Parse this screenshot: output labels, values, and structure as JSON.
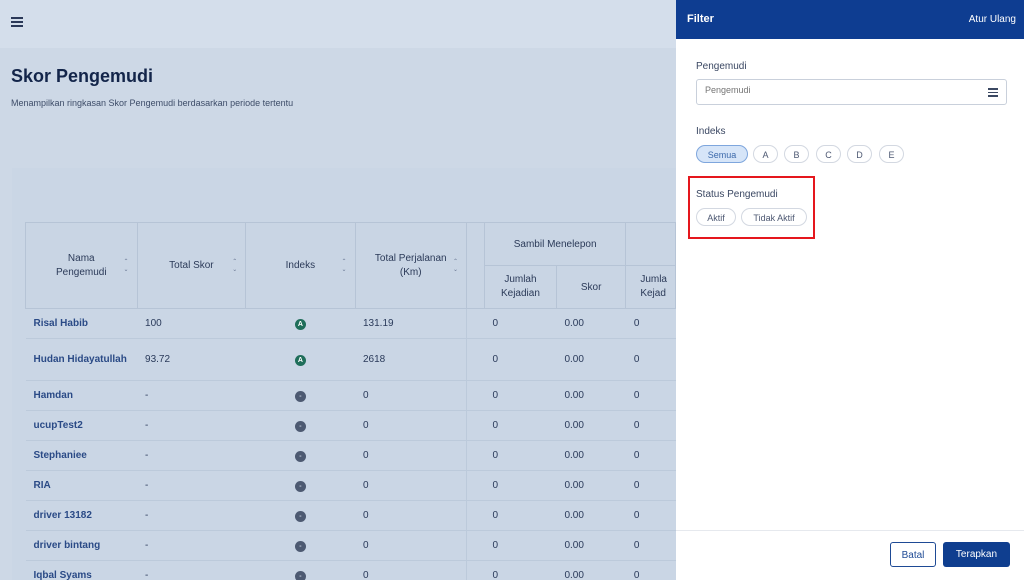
{
  "page": {
    "title": "Skor Pengemudi",
    "subtitle": "Menampilkan ringkasan Skor Pengemudi berdasarkan periode tertentu"
  },
  "table": {
    "headers": {
      "name": "Nama Pengemudi",
      "total_score": "Total Skor",
      "index": "Indeks",
      "total_trip": "Total Perjalanan (Km)",
      "group_phone": "Sambil Menelepon",
      "incidents": "Jumlah Kejadian",
      "score": "Skor",
      "incidents_partial": "Jumla Kejad"
    },
    "rows": [
      {
        "name": "Risal Habib",
        "total_score": "100",
        "index": "A",
        "trip": "131.19",
        "incidents": "0",
        "score": "0.00",
        "next": "0"
      },
      {
        "name": "Hudan Hidayatullah",
        "total_score": "93.72",
        "index": "A",
        "trip": "2618",
        "incidents": "0",
        "score": "0.00",
        "next": "0"
      },
      {
        "name": "Hamdan",
        "total_score": "-",
        "index": "-",
        "trip": "0",
        "incidents": "0",
        "score": "0.00",
        "next": "0"
      },
      {
        "name": "ucupTest2",
        "total_score": "-",
        "index": "-",
        "trip": "0",
        "incidents": "0",
        "score": "0.00",
        "next": "0"
      },
      {
        "name": "Stephaniee",
        "total_score": "-",
        "index": "-",
        "trip": "0",
        "incidents": "0",
        "score": "0.00",
        "next": "0"
      },
      {
        "name": "RIA",
        "total_score": "-",
        "index": "-",
        "trip": "0",
        "incidents": "0",
        "score": "0.00",
        "next": "0"
      },
      {
        "name": "driver 13182",
        "total_score": "-",
        "index": "-",
        "trip": "0",
        "incidents": "0",
        "score": "0.00",
        "next": "0"
      },
      {
        "name": "driver bintang",
        "total_score": "-",
        "index": "-",
        "trip": "0",
        "incidents": "0",
        "score": "0.00",
        "next": "0"
      },
      {
        "name": "Iqbal Syams",
        "total_score": "-",
        "index": "-",
        "trip": "0",
        "incidents": "0",
        "score": "0.00",
        "next": "0"
      }
    ]
  },
  "filter": {
    "title": "Filter",
    "reset": "Atur Ulang",
    "driver_label": "Pengemudi",
    "driver_placeholder": "Pengemudi",
    "index_label": "Indeks",
    "index_options": [
      "Semua",
      "A",
      "B",
      "C",
      "D",
      "E"
    ],
    "index_selected": "Semua",
    "status_label": "Status Pengemudi",
    "status_options": [
      "Aktif",
      "Tidak Aktif"
    ],
    "cancel": "Batal",
    "apply": "Terapkan"
  },
  "colors": {
    "header_bg": "#0e3d91",
    "highlight": "#e5171d",
    "badge_a": "#1f6e5a"
  }
}
